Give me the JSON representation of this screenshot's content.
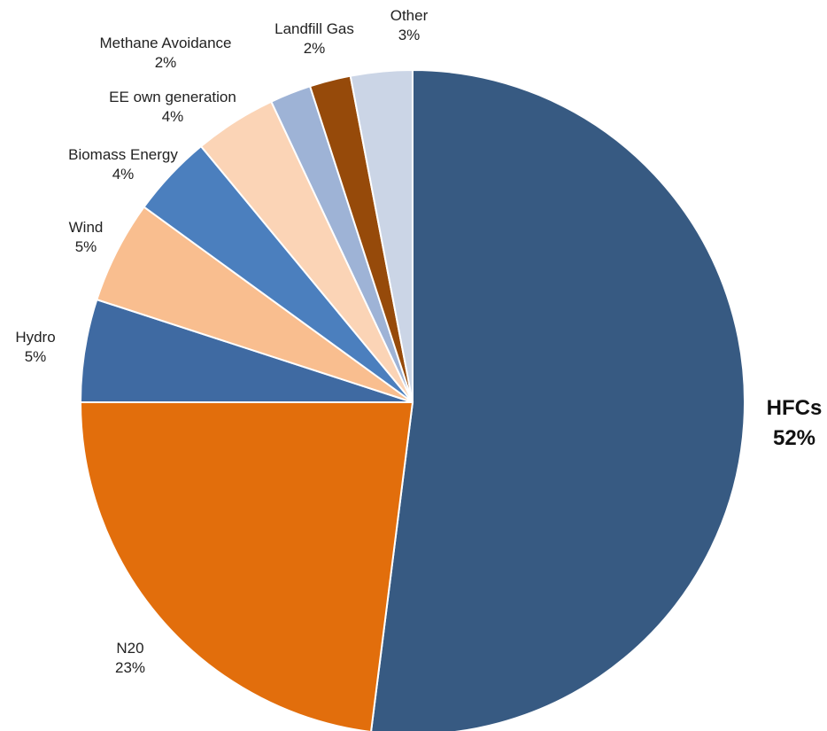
{
  "chart_data": {
    "type": "pie",
    "title": "",
    "unit": "%",
    "direction": "clockwise",
    "slices": [
      {
        "name": "HFCs",
        "value": 52,
        "label_pct": "52%",
        "color": "#375A82",
        "emphasis": true
      },
      {
        "name": "N20",
        "value": 23,
        "label_pct": "23%",
        "color": "#E26E0C",
        "emphasis": false
      },
      {
        "name": "Hydro",
        "value": 5,
        "label_pct": "5%",
        "color": "#3F6AA2",
        "emphasis": false
      },
      {
        "name": "Wind",
        "value": 5,
        "label_pct": "5%",
        "color": "#F9BE8F",
        "emphasis": false
      },
      {
        "name": "Biomass Energy",
        "value": 4,
        "label_pct": "4%",
        "color": "#4B7FBE",
        "emphasis": false
      },
      {
        "name": "EE own generation",
        "value": 4,
        "label_pct": "4%",
        "color": "#FBD4B6",
        "emphasis": false
      },
      {
        "name": "Methane Avoidance",
        "value": 2,
        "label_pct": "2%",
        "color": "#9EB3D6",
        "emphasis": false
      },
      {
        "name": "Landfill Gas",
        "value": 2,
        "label_pct": "2%",
        "color": "#964A0A",
        "emphasis": false
      },
      {
        "name": "Other",
        "value": 3,
        "label_pct": "3%",
        "color": "#CBD5E6",
        "emphasis": false
      }
    ]
  }
}
